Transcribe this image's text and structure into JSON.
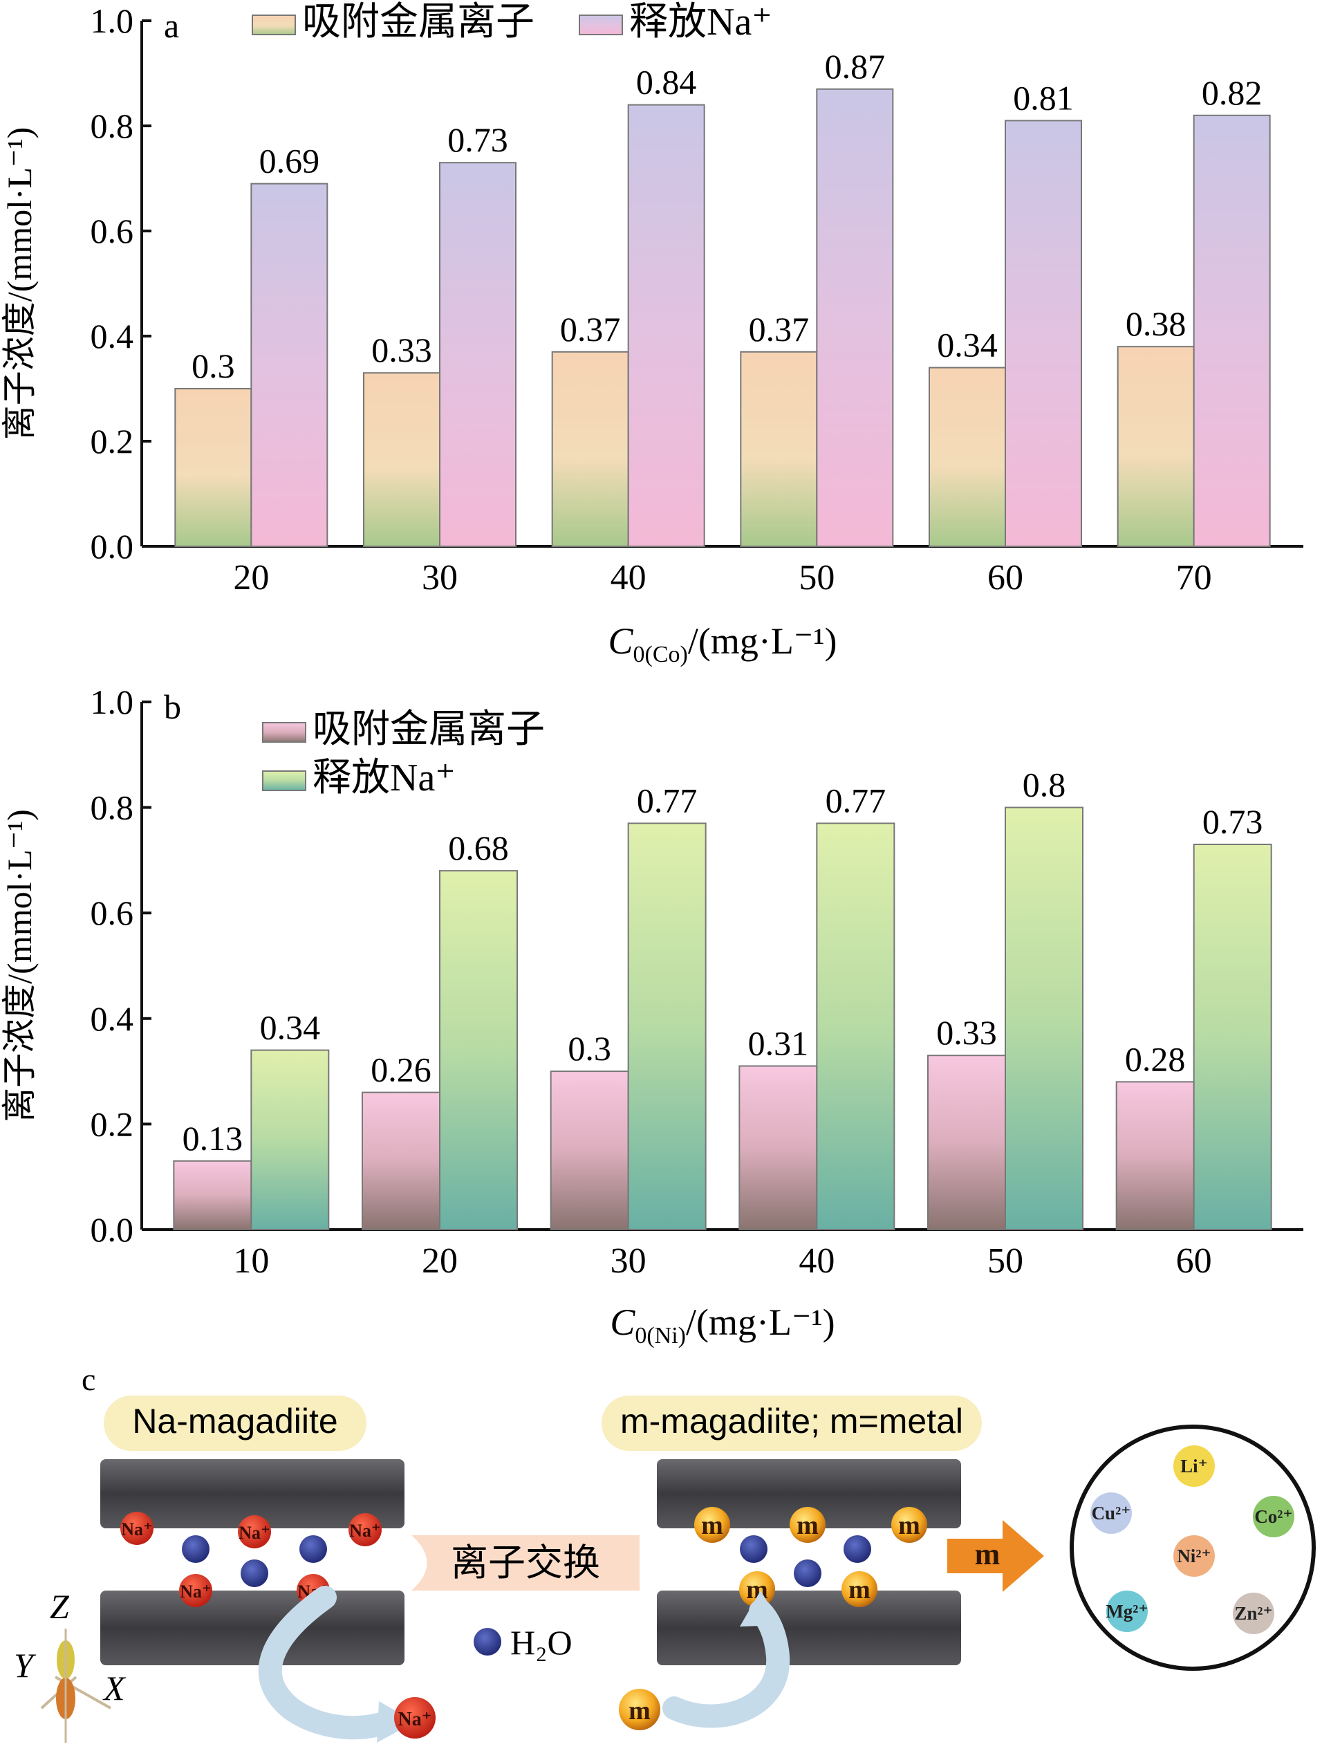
{
  "chart_data": [
    {
      "panel": "a",
      "type": "bar",
      "categories": [
        "20",
        "30",
        "40",
        "50",
        "60",
        "70"
      ],
      "series": [
        {
          "name": "吸附金属离子",
          "values": [
            0.3,
            0.33,
            0.37,
            0.37,
            0.34,
            0.38
          ],
          "labels": [
            "0.3",
            "0.33",
            "0.37",
            "0.37",
            "0.34",
            "0.38"
          ],
          "colors": [
            "#f3d1ae",
            "#a7c98a"
          ]
        },
        {
          "name": "释放Na⁺",
          "values": [
            0.69,
            0.73,
            0.84,
            0.87,
            0.81,
            0.82
          ],
          "labels": [
            "0.69",
            "0.73",
            "0.84",
            "0.87",
            "0.81",
            "0.82"
          ],
          "colors": [
            "#c9c6e6",
            "#f3b8d6"
          ]
        }
      ],
      "ylabel": "离子浓度/(mmol·L⁻¹)",
      "xlabel_main": "C",
      "xlabel_sub": "0(Co)",
      "xlabel_rest": "/(mg·L⁻¹)",
      "ylim": [
        0,
        1.0
      ],
      "yticks": [
        "0.0",
        "0.2",
        "0.4",
        "0.6",
        "0.8",
        "1.0"
      ],
      "legend": "top"
    },
    {
      "panel": "b",
      "type": "bar",
      "categories": [
        "10",
        "20",
        "30",
        "40",
        "50",
        "60"
      ],
      "series": [
        {
          "name": "吸附金属离子",
          "values": [
            0.13,
            0.26,
            0.3,
            0.31,
            0.33,
            0.28
          ],
          "labels": [
            "0.13",
            "0.26",
            "0.3",
            "0.31",
            "0.33",
            "0.28"
          ],
          "colors": [
            "#f6c5dd",
            "#8d7470"
          ]
        },
        {
          "name": "释放Na⁺",
          "values": [
            0.34,
            0.68,
            0.77,
            0.77,
            0.8,
            0.73
          ],
          "labels": [
            "0.34",
            "0.68",
            "0.77",
            "0.77",
            "0.8",
            "0.73"
          ],
          "colors": [
            "#dcefa9",
            "#6bb2a5"
          ]
        }
      ],
      "ylabel": "离子浓度/(mmol·L⁻¹)",
      "xlabel_main": "C",
      "xlabel_sub": "0(Ni)",
      "xlabel_rest": "/(mg·L⁻¹)",
      "ylim": [
        0,
        1.0
      ],
      "yticks": [
        "0.0",
        "0.2",
        "0.4",
        "0.6",
        "0.8",
        "1.0"
      ],
      "legend": "top-left"
    }
  ],
  "diagram": {
    "panel": "c",
    "left_title": "Na-magadiite",
    "right_title": "m-magadiite; m=metal",
    "exchange_label": "离子交换",
    "water_label": "H₂O",
    "na_label": "Na⁺",
    "m_label": "m",
    "arrow_label": "m",
    "axis_z": "Z",
    "axis_y": "Y",
    "axis_x": "X",
    "metals": [
      {
        "label": "Li⁺",
        "color": "#f2d33a"
      },
      {
        "label": "Cu²⁺",
        "color": "#b7c6e8"
      },
      {
        "label": "Co²⁺",
        "color": "#7dbf57"
      },
      {
        "label": "Ni²⁺",
        "color": "#f0a672"
      },
      {
        "label": "Mg²⁺",
        "color": "#5fc3cf"
      },
      {
        "label": "Zn²⁺",
        "color": "#c9bab3"
      }
    ],
    "colors": {
      "slab": "#4a4a4e",
      "na": "#d42b1e",
      "water": "#2f3d8f",
      "metal": "#f29b18",
      "arrow": "#ee8a23",
      "title_bg": "#f8eebe",
      "exchange_bg": "#fbdcc8"
    }
  }
}
